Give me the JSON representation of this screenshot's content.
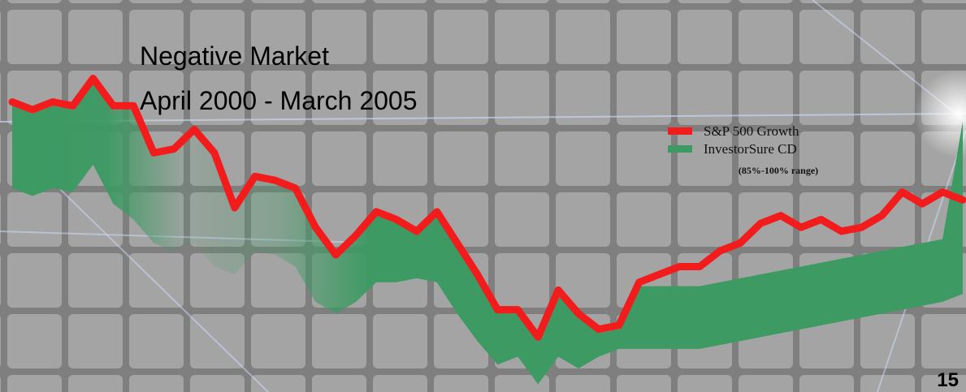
{
  "chart_data": {
    "type": "band-line",
    "title": [
      "Negative Market",
      "April 2000 - March 2005"
    ],
    "range_note": "(85%-100% range)",
    "page_number": "15",
    "categories": [
      null,
      null,
      null,
      null,
      null,
      null,
      null,
      null,
      null,
      null,
      null,
      null,
      null,
      null,
      null,
      null,
      null,
      null,
      null,
      null,
      null,
      null,
      null,
      null,
      null,
      null,
      null,
      null,
      null,
      null,
      null,
      null,
      null,
      null,
      null,
      null,
      null,
      null,
      null,
      null,
      null,
      null,
      null,
      null,
      null,
      null,
      null,
      null
    ],
    "ylim": [
      0,
      100
    ],
    "legend": "upper right",
    "series": [
      {
        "name": "S&P 500 Growth",
        "color": "#f21c1c",
        "values": [
          74,
          72,
          74,
          73,
          80,
          73,
          73,
          61,
          62,
          67,
          61,
          47,
          55,
          54,
          52,
          42,
          35,
          40,
          46,
          44,
          41,
          46,
          38,
          30,
          21,
          21,
          14,
          26,
          20,
          16,
          17,
          28,
          30,
          32,
          32,
          36,
          38,
          43,
          45,
          42,
          44,
          41,
          42,
          45,
          51,
          48,
          51,
          49
        ]
      },
      {
        "name": "InvestorSure CD",
        "color": "#3c9a62",
        "values": [
          73,
          71,
          73,
          72,
          79,
          72,
          72,
          60,
          61,
          66,
          60,
          46,
          54,
          53,
          51,
          41,
          34,
          39,
          45,
          43,
          40,
          45,
          37,
          29,
          20,
          20,
          13,
          25,
          19,
          15,
          16,
          27,
          27,
          27,
          27,
          28,
          29,
          30,
          31,
          32,
          33,
          34,
          35,
          36,
          37,
          38,
          39,
          69
        ],
        "low": [
          52,
          50,
          52,
          51,
          58,
          48,
          44,
          38,
          36,
          38,
          32,
          30,
          36,
          35,
          32,
          23,
          20,
          23,
          28,
          28,
          29,
          28,
          20,
          13,
          7,
          9,
          2,
          9,
          6,
          9,
          11,
          11,
          11,
          11,
          11,
          12,
          13,
          14,
          15,
          16,
          17,
          18,
          19,
          20,
          21,
          22,
          23,
          25
        ]
      }
    ]
  }
}
